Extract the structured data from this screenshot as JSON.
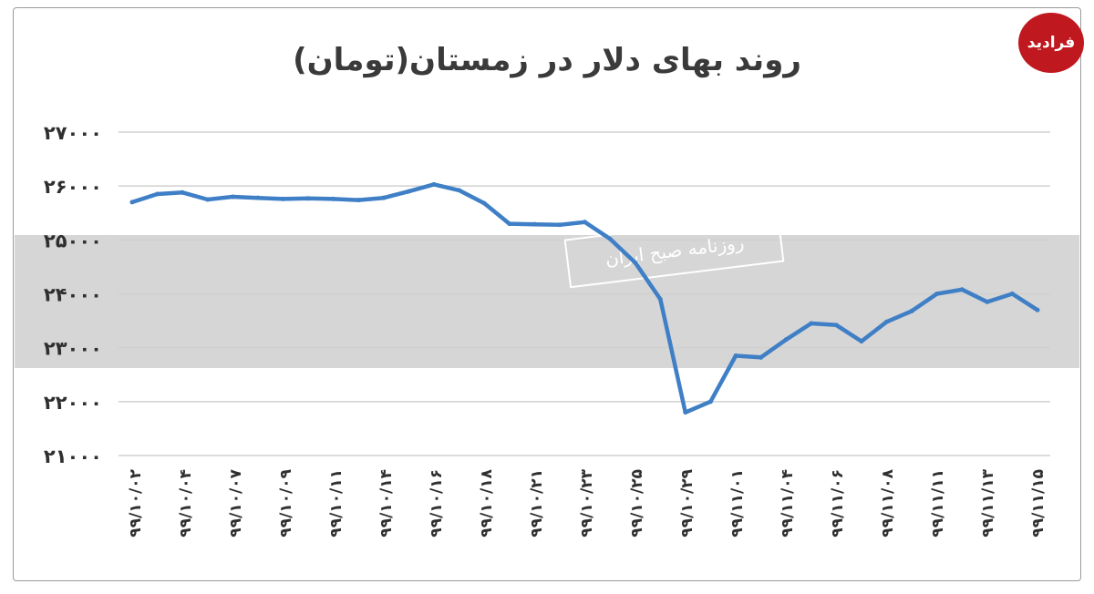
{
  "title": "روند بهای دلار در زمستان(تومان)",
  "watermark": {
    "text": "روزنامه صبح ایران"
  },
  "logo": {
    "text": "فرادید"
  },
  "colors": {
    "line": "#3f7fc6",
    "grid": "#d0d0d0",
    "band": "#d6d6d6",
    "text": "#2f2f2f"
  },
  "chart_data": {
    "type": "line",
    "title": "روند بهای دلار در زمستان(تومان)",
    "xlabel": "",
    "ylabel": "",
    "ylim": [
      21000,
      27000
    ],
    "yticks": [
      21000,
      22000,
      23000,
      24000,
      25000,
      26000,
      27000
    ],
    "ytick_labels": [
      "۲۱۰۰۰",
      "۲۲۰۰۰",
      "۲۳۰۰۰",
      "۲۴۰۰۰",
      "۲۵۰۰۰",
      "۲۶۰۰۰",
      "۲۷۰۰۰"
    ],
    "xtick_labels": [
      "۹۹/۱۰/۰۲",
      "۹۹/۱۰/۰۴",
      "۹۹/۱۰/۰۷",
      "۹۹/۱۰/۰۹",
      "۹۹/۱۰/۱۱",
      "۹۹/۱۰/۱۴",
      "۹۹/۱۰/۱۶",
      "۹۹/۱۰/۱۸",
      "۹۹/۱۰/۲۱",
      "۹۹/۱۰/۲۳",
      "۹۹/۱۰/۲۵",
      "۹۹/۱۰/۲۹",
      "۹۹/۱۱/۰۱",
      "۹۹/۱۱/۰۴",
      "۹۹/۱۱/۰۶",
      "۹۹/۱۱/۰۸",
      "۹۹/۱۱/۱۱",
      "۹۹/۱۱/۱۳",
      "۹۹/۱۱/۱۵"
    ],
    "grid": true,
    "legend": "none",
    "series": [
      {
        "values": [
          25700,
          25850,
          25880,
          25750,
          25800,
          25780,
          25760,
          25770,
          25760,
          25740,
          25780,
          25900,
          26030,
          25920,
          25680,
          25300,
          25290,
          25280,
          25330,
          25020,
          24580,
          23900,
          21800,
          22000,
          22850,
          22820,
          23150,
          23450,
          23420,
          23120,
          23480,
          23680,
          24000,
          24080,
          23850,
          24000,
          23700
        ]
      }
    ]
  }
}
